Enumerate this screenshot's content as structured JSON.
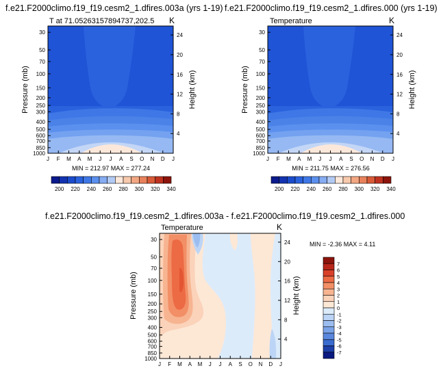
{
  "chart_data": [
    {
      "type": "contour",
      "title": "f.e21.F2000climo.f19_f19.cesm2_1.dfires.003a (yrs 1-19)",
      "subtitle_left": "T at 71.05263157894737,202.5",
      "subtitle_right": "K",
      "ylabel": "Pressure (mb)",
      "ylabel_right": "Height (km)",
      "x_ticks": [
        "J",
        "F",
        "M",
        "A",
        "M",
        "J",
        "J",
        "A",
        "S",
        "O",
        "N",
        "D",
        "J"
      ],
      "y_ticks": [
        "30",
        "50",
        "70",
        "100",
        "150",
        "200",
        "250",
        "300",
        "400",
        "500",
        "600",
        "700",
        "850",
        "1000"
      ],
      "y_right_ticks": [
        "24",
        "20",
        "16",
        "12",
        "8",
        "4"
      ],
      "stats": "MIN = 212.97  MAX = 277.24",
      "min": 212.97,
      "max": 277.24,
      "colorbar_labels": [
        "200",
        "220",
        "240",
        "260",
        "280",
        "300",
        "320",
        "340"
      ]
    },
    {
      "type": "contour",
      "title": "f.e21.F2000climo.f19_f19.cesm2_1.dfires.000 (yrs 1-19)",
      "subtitle_left": "Temperature",
      "subtitle_right": "K",
      "ylabel": "Pressure (mb)",
      "ylabel_right": "Height (km)",
      "x_ticks": [
        "J",
        "F",
        "M",
        "A",
        "M",
        "J",
        "J",
        "A",
        "S",
        "O",
        "N",
        "D",
        "J"
      ],
      "y_ticks": [
        "30",
        "50",
        "70",
        "100",
        "150",
        "200",
        "250",
        "300",
        "400",
        "500",
        "600",
        "700",
        "850",
        "1000"
      ],
      "y_right_ticks": [
        "24",
        "20",
        "16",
        "12",
        "8",
        "4"
      ],
      "stats": "MIN = 211.75  MAX = 276.56",
      "min": 211.75,
      "max": 276.56,
      "colorbar_labels": [
        "200",
        "220",
        "240",
        "260",
        "280",
        "300",
        "320",
        "340"
      ]
    },
    {
      "type": "contour",
      "title": "f.e21.F2000climo.f19_f19.cesm2_1.dfires.003a - f.e21.F2000climo.f19_f19.cesm2_1.dfires.000",
      "subtitle_left": "Temperature",
      "subtitle_right": "K",
      "ylabel": "Pressure (mb)",
      "ylabel_right": "Height (km)",
      "x_ticks": [
        "J",
        "F",
        "M",
        "A",
        "M",
        "J",
        "J",
        "A",
        "S",
        "O",
        "N",
        "D",
        "J"
      ],
      "y_ticks": [
        "30",
        "50",
        "70",
        "100",
        "150",
        "200",
        "250",
        "300",
        "400",
        "500",
        "600",
        "700",
        "850",
        "1000"
      ],
      "y_right_ticks": [
        "24",
        "20",
        "16",
        "12",
        "8",
        "4"
      ],
      "stats": "MIN =  -2.36 MAX =   4.11",
      "min": -2.36,
      "max": 4.11,
      "colorbar_labels": [
        "7",
        "6",
        "5",
        "4",
        "3",
        "2",
        "1",
        "0",
        "-1",
        "-2",
        "-3",
        "-4",
        "-5",
        "-6",
        "-7"
      ]
    }
  ],
  "colors": {
    "abs_scale": [
      "#0b1a8c",
      "#1333b0",
      "#1b4ccc",
      "#2a62de",
      "#3f78e6",
      "#5b90ee",
      "#86acf2",
      "#b2cbf5",
      "#fce8da",
      "#f7c9ad",
      "#f2a783",
      "#e8825c",
      "#d85a38",
      "#bf3220",
      "#8c140c"
    ],
    "diff_scale": [
      "#8c140c",
      "#b8261a",
      "#d8402a",
      "#ec6a44",
      "#f28f66",
      "#f7b491",
      "#fbd3ba",
      "#fde8d6",
      "#dcebfa",
      "#bcd5f6",
      "#9cbdf0",
      "#7ba3e8",
      "#5b88de",
      "#3a6bcf",
      "#1c3fa8",
      "#0a1a80"
    ]
  }
}
